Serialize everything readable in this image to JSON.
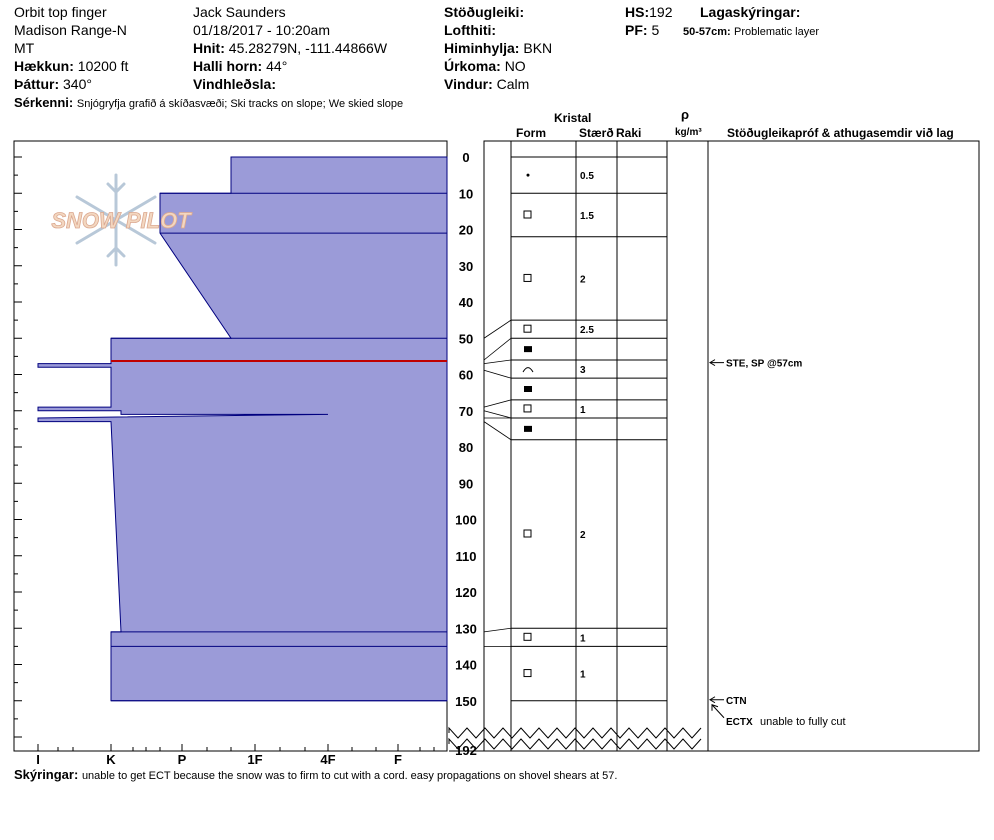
{
  "header": {
    "location": "Orbit top finger",
    "range": "Madison Range-N",
    "state": "MT",
    "elevation_label": "Hækkun:",
    "elevation_value": "10200 ft",
    "aspect_label": "Þáttur:",
    "aspect_value": "340°",
    "observer": "Jack Saunders",
    "datetime": "01/18/2017 - 10:20am",
    "coords_label": "Hnit:",
    "coords_value": "45.28279N, -111.44866W",
    "slope_label": "Halli horn:",
    "slope_value": "44°",
    "wind_loading_label": "Vindhleðsla:",
    "stability_label": "Stöðugleiki:",
    "air_temp_label": "Lofthiti:",
    "sky_label": "Himinhylja:",
    "sky_value": "BKN",
    "precip_label": "Úrkoma:",
    "precip_value": "NO",
    "wind_label": "Vindur:",
    "wind_value": "Calm",
    "hs_label": "HS:",
    "hs_value": "192",
    "pf_label": "PF:",
    "pf_value": "5",
    "layer_notes_label": "Lagaskýringar:",
    "layer_note_range": "50-57cm:",
    "layer_note_text": "Problematic layer",
    "features_label": "Sérkenni:",
    "features_value": "Snjógryfja grafið á skíðasvæði; Ski tracks on slope; We skied slope"
  },
  "columns": {
    "crystal": "Kristal",
    "form": "Form",
    "size": "Stærð",
    "moisture": "Raki",
    "density_symbol": "ρ",
    "density_unit": "kg/m³",
    "tests": "Stöðugleikapróf & athugasemdir við lag"
  },
  "footer": {
    "notes_label": "Skýringar:",
    "notes_value": "unable to get ECT because the snow was to firm to cut with a cord. easy propagations on shovel shears at 57."
  },
  "logo_text": "SNOW PILOT",
  "colors": {
    "hardness_fill": "#9b9bd8",
    "layer_line": "#00007f",
    "problem_line": "#c00000",
    "background": "#ffffff"
  },
  "chart_data": {
    "type": "snow-profile",
    "depth_unit": "cm",
    "y_ticks": [
      0,
      10,
      20,
      30,
      40,
      50,
      60,
      70,
      80,
      90,
      100,
      110,
      120,
      130,
      140,
      150
    ],
    "y_max_label": "192",
    "hardness_ticks": [
      "I",
      "K",
      "P",
      "1F",
      "4F",
      "F"
    ],
    "hardness_profile": [
      {
        "depth": 0,
        "hardness": "4F-"
      },
      {
        "depth": 10,
        "hardness": "4F-"
      },
      {
        "depth": 10,
        "hardness": "1F-"
      },
      {
        "depth": 21,
        "hardness": "1F-"
      },
      {
        "depth": 50,
        "hardness": "4F-"
      },
      {
        "depth": 50,
        "hardness": "K"
      },
      {
        "depth": 57,
        "hardness": "K"
      },
      {
        "depth": 57,
        "hardness": "I"
      },
      {
        "depth": 58,
        "hardness": "I"
      },
      {
        "depth": 58,
        "hardness": "K"
      },
      {
        "depth": 69,
        "hardness": "K"
      },
      {
        "depth": 69,
        "hardness": "I"
      },
      {
        "depth": 70,
        "hardness": "I"
      },
      {
        "depth": 70,
        "hardness": "K+"
      },
      {
        "depth": 71,
        "hardness": "K+"
      },
      {
        "depth": 71,
        "hardness": "4F"
      },
      {
        "depth": 72,
        "hardness": "I"
      },
      {
        "depth": 73,
        "hardness": "I"
      },
      {
        "depth": 73,
        "hardness": "K"
      },
      {
        "depth": 131,
        "hardness": "K+"
      },
      {
        "depth": 131,
        "hardness": "K"
      },
      {
        "depth": 150,
        "hardness": "K"
      }
    ],
    "layer_boundaries": [
      0,
      10,
      22,
      45,
      50,
      56,
      61,
      67,
      72,
      78,
      130,
      135,
      150
    ],
    "problem_layer_depth": 56,
    "layers": [
      {
        "form": "•",
        "size": "0.5"
      },
      {
        "form": "□",
        "size": "1.5"
      },
      {
        "form": "□",
        "size": "2"
      },
      {
        "form": "□",
        "size": "2.5"
      },
      {
        "form": "■",
        "size": ""
      },
      {
        "form": "∧",
        "size": "3"
      },
      {
        "form": "■",
        "size": ""
      },
      {
        "form": "□",
        "size": "1"
      },
      {
        "form": "■",
        "size": ""
      },
      {
        "form": "□",
        "size": "2"
      },
      {
        "form": "□",
        "size": "1"
      },
      {
        "form": "□",
        "size": "1"
      }
    ],
    "stability_tests": [
      {
        "depth": 57,
        "label": "STE, SP @57cm",
        "comment": ""
      },
      {
        "depth": 150,
        "label": "CTN",
        "comment": ""
      },
      {
        "depth": 150,
        "label": "ECTX",
        "comment": "unable to fully cut"
      }
    ]
  }
}
